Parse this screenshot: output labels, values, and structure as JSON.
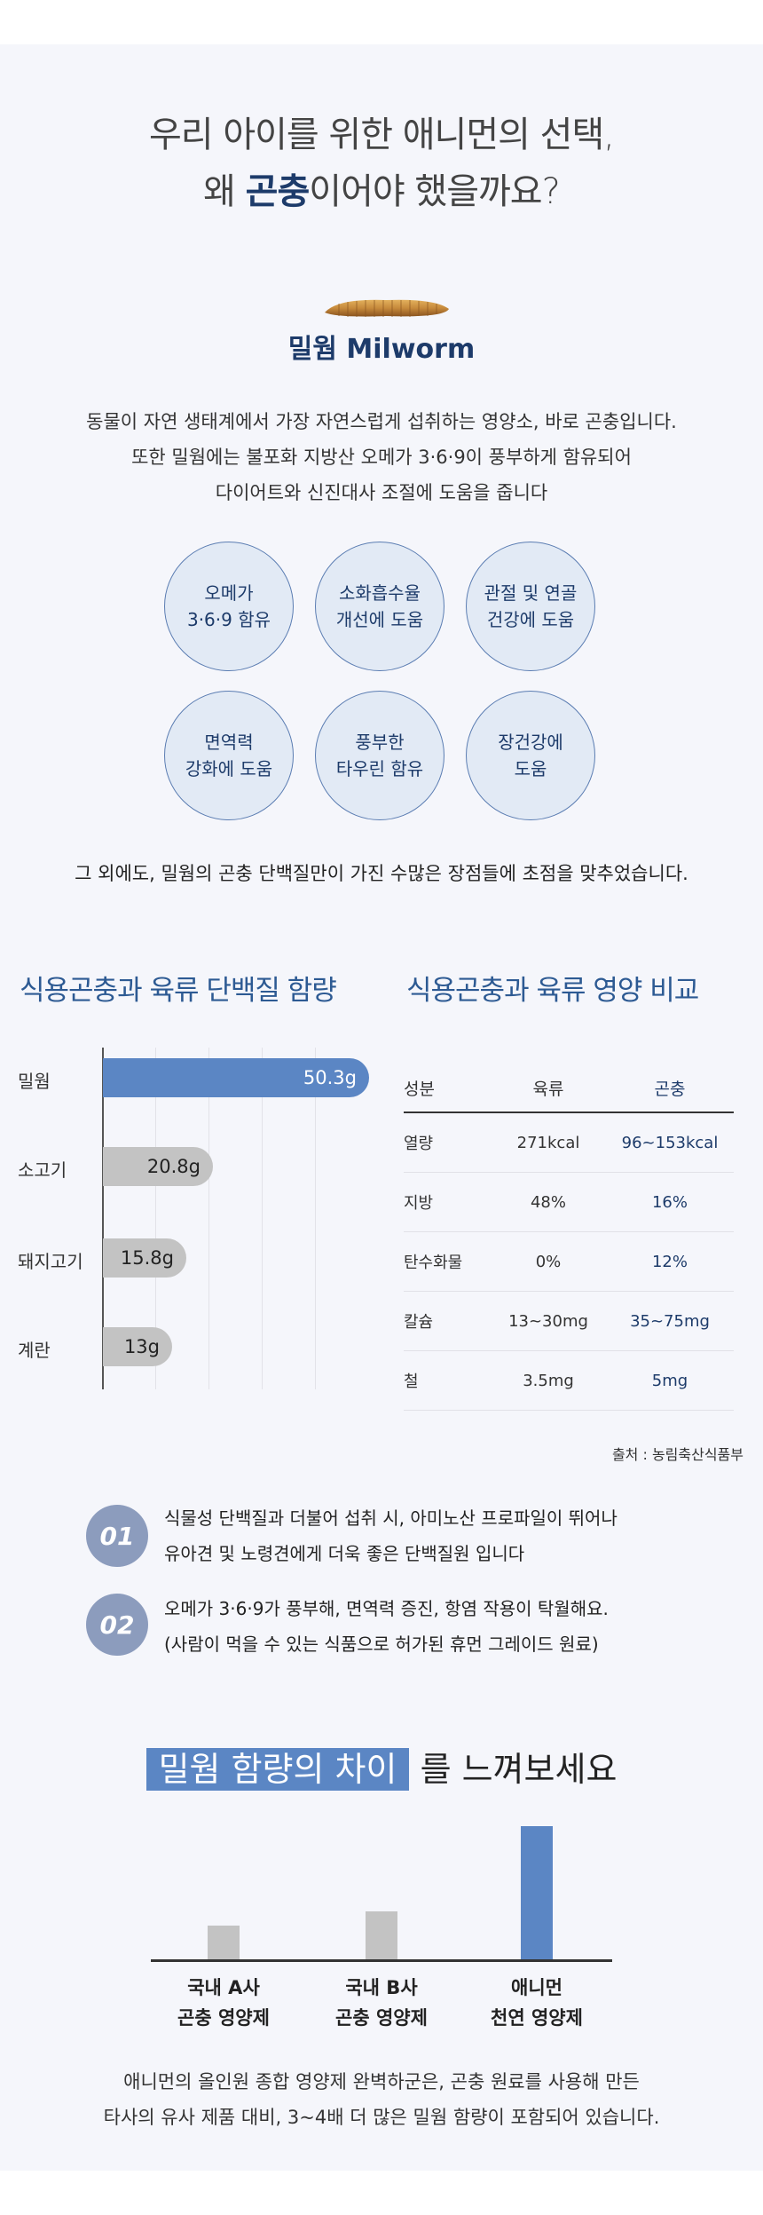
{
  "headline": {
    "pre": "우리 아이를 위한 애니먼의 선택,",
    "line2_pre": "왜 ",
    "line2_hl": "곤충",
    "line2_post": "이어야 했을까요?"
  },
  "worm": {
    "title": "밀웜 Milworm"
  },
  "intro": [
    "동물이 자연 생태계에서 가장 자연스럽게 섭취하는 영양소, 바로 곤충입니다.",
    "또한 밀웜에는 불포화 지방산 오메가 3·6·9이 풍부하게 함유되어",
    "다이어트와 신진대사 조절에 도움을 줍니다"
  ],
  "benefits": [
    "오메가\n3·6·9 함유",
    "소화흡수율\n개선에 도움",
    "관절 및 연골\n건강에 도움",
    "면역력\n강화에 도움",
    "풍부한\n타우린 함유",
    "장건강에\n도움"
  ],
  "others": "그 외에도, 밀웜의 곤충 단백질만이 가진 수많은 장점들에 초점을 맞추었습니다.",
  "protein": {
    "title": "식용곤충과 육류 단백질 함량",
    "chart_data": {
      "type": "bar",
      "categories": [
        "밀웜",
        "소고기",
        "돼지고기",
        "계란"
      ],
      "values": [
        50.3,
        20.8,
        15.8,
        13
      ],
      "labels": [
        "50.3g",
        "20.8g",
        "15.8g",
        "13g"
      ],
      "colors": [
        "#5b86c4",
        "#c3c3c3",
        "#c3c3c3",
        "#c3c3c3"
      ],
      "orientation": "horizontal",
      "xlim": [
        0,
        52
      ],
      "grid": true
    }
  },
  "nutrition": {
    "title": "식용곤충과 육류 영양 비교",
    "headers": [
      "성분",
      "육류",
      "곤충"
    ],
    "rows": [
      [
        "열량",
        "271kcal",
        "96~153kcal"
      ],
      [
        "지방",
        "48%",
        "16%"
      ],
      [
        "탄수화물",
        "0%",
        "12%"
      ],
      [
        "칼슘",
        "13~30mg",
        "35~75mg"
      ],
      [
        "철",
        "3.5mg",
        "5mg"
      ]
    ],
    "source": "출처 : 농림축산식품부"
  },
  "points": [
    {
      "num": "01",
      "lines": [
        "식물성 단백질과 더불어 섭취 시, 아미노산 프로파일이 뛰어나",
        "유아견 및 노령견에게 더욱 좋은 단백질원 입니다"
      ]
    },
    {
      "num": "02",
      "lines": [
        "오메가 3·6·9가  풍부해, 면역력 증진, 항염 작용이 탁월해요.",
        "(사람이 먹을 수 있는 식품으로 허가된 휴먼 그레이드 원료)"
      ]
    }
  ],
  "diff": {
    "title_hl": "밀웜 함량의 차이",
    "title_post": " 를 느껴보세요",
    "chart_data": {
      "type": "bar",
      "categories": [
        "국내 A사\n곤충 영양제",
        "국내 B사\n곤충 영양제",
        "애니먼\n천연 영양제"
      ],
      "values": [
        1,
        1.4,
        3.9
      ],
      "colors": [
        "#c3c3c3",
        "#c3c3c3",
        "#5b86c4"
      ]
    }
  },
  "closing": [
    "애니먼의 올인원 종합 영양제 완벽하군은, 곤충 원료를 사용해 만든",
    "타사의 유사 제품 대비, 3~4배 더 많은 밀웜 함량이 포함되어 있습니다."
  ]
}
